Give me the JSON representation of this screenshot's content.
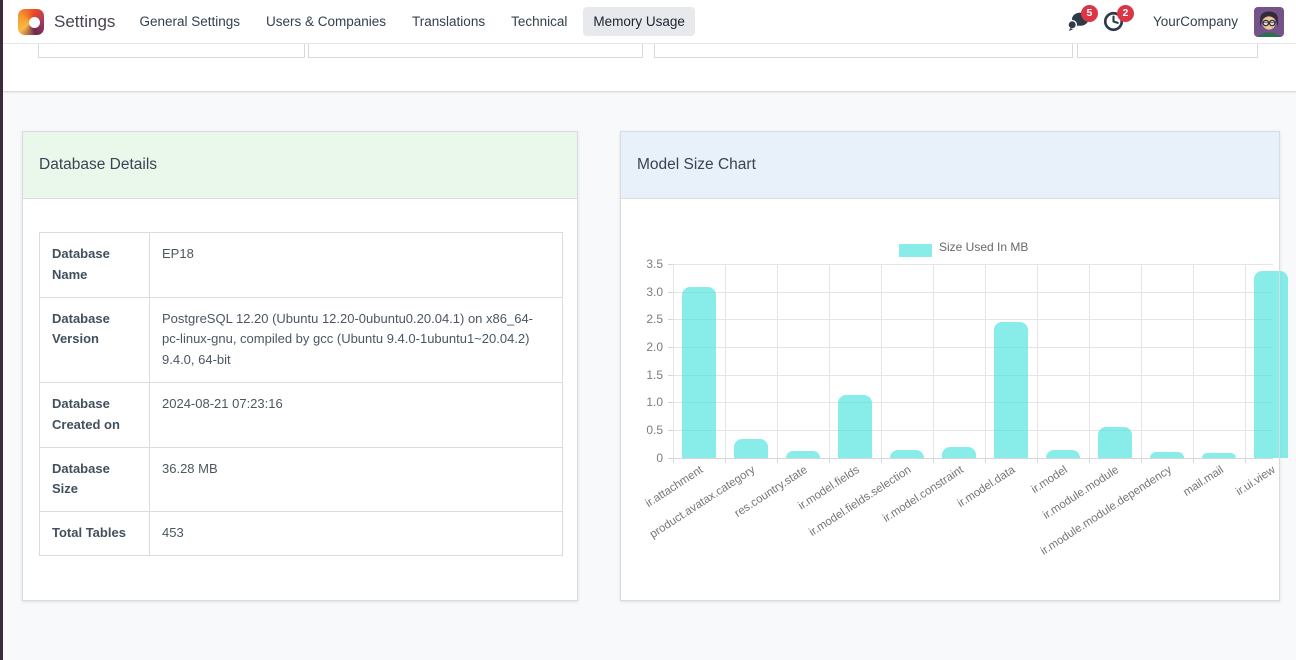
{
  "nav": {
    "app_name": "Settings",
    "items": [
      {
        "label": "General Settings",
        "active": false
      },
      {
        "label": "Users & Companies",
        "active": false
      },
      {
        "label": "Translations",
        "active": false
      },
      {
        "label": "Technical",
        "active": false
      },
      {
        "label": "Memory Usage",
        "active": true
      }
    ],
    "messages_badge": "5",
    "activities_badge": "2",
    "company": "YourCompany"
  },
  "left_panel": {
    "title": "Database Details",
    "rows": [
      {
        "label": "Database Name",
        "value": "EP18"
      },
      {
        "label": "Database Version",
        "value": "PostgreSQL 12.20 (Ubuntu 12.20-0ubuntu0.20.04.1) on x86_64-pc-linux-gnu, compiled by gcc (Ubuntu 9.4.0-1ubuntu1~20.04.2) 9.4.0, 64-bit"
      },
      {
        "label": "Database Created on",
        "value": "2024-08-21 07:23:16"
      },
      {
        "label": "Database Size",
        "value": "36.28 MB"
      },
      {
        "label": "Total Tables",
        "value": "453"
      }
    ]
  },
  "right_panel": {
    "title": "Model Size Chart"
  },
  "chart_data": {
    "type": "bar",
    "title": "Model Size Chart",
    "legend": "Size Used In MB",
    "legend_position": "top",
    "categories": [
      "ir.attachment",
      "product.avatax.category",
      "res.country.state",
      "ir.model.fields",
      "ir.model.fields.selection",
      "ir.model.constraint",
      "ir.model.data",
      "ir.model",
      "ir.module.module",
      "ir.module.module.dependency",
      "mail.mail",
      "ir.ui.view"
    ],
    "values": [
      3.08,
      0.34,
      0.12,
      1.14,
      0.14,
      0.2,
      2.45,
      0.14,
      0.55,
      0.1,
      0.09,
      3.37
    ],
    "xlabel": "",
    "ylabel": "",
    "ylim": [
      0,
      3.5
    ],
    "ytick_step": 0.5,
    "grid": true,
    "bar_color": "rgba(72,226,219,0.65)"
  },
  "colors": {
    "bar": "rgba(72,226,219,0.65)",
    "bar_solid_on_white": "#88ECE7",
    "left_header_bg": "#eaf8ec",
    "right_header_bg": "#e8f1fa",
    "badge_bg": "#dc3545",
    "nav_active_bg": "#e7e9ec",
    "screen_edge": "#3a2a3a"
  }
}
